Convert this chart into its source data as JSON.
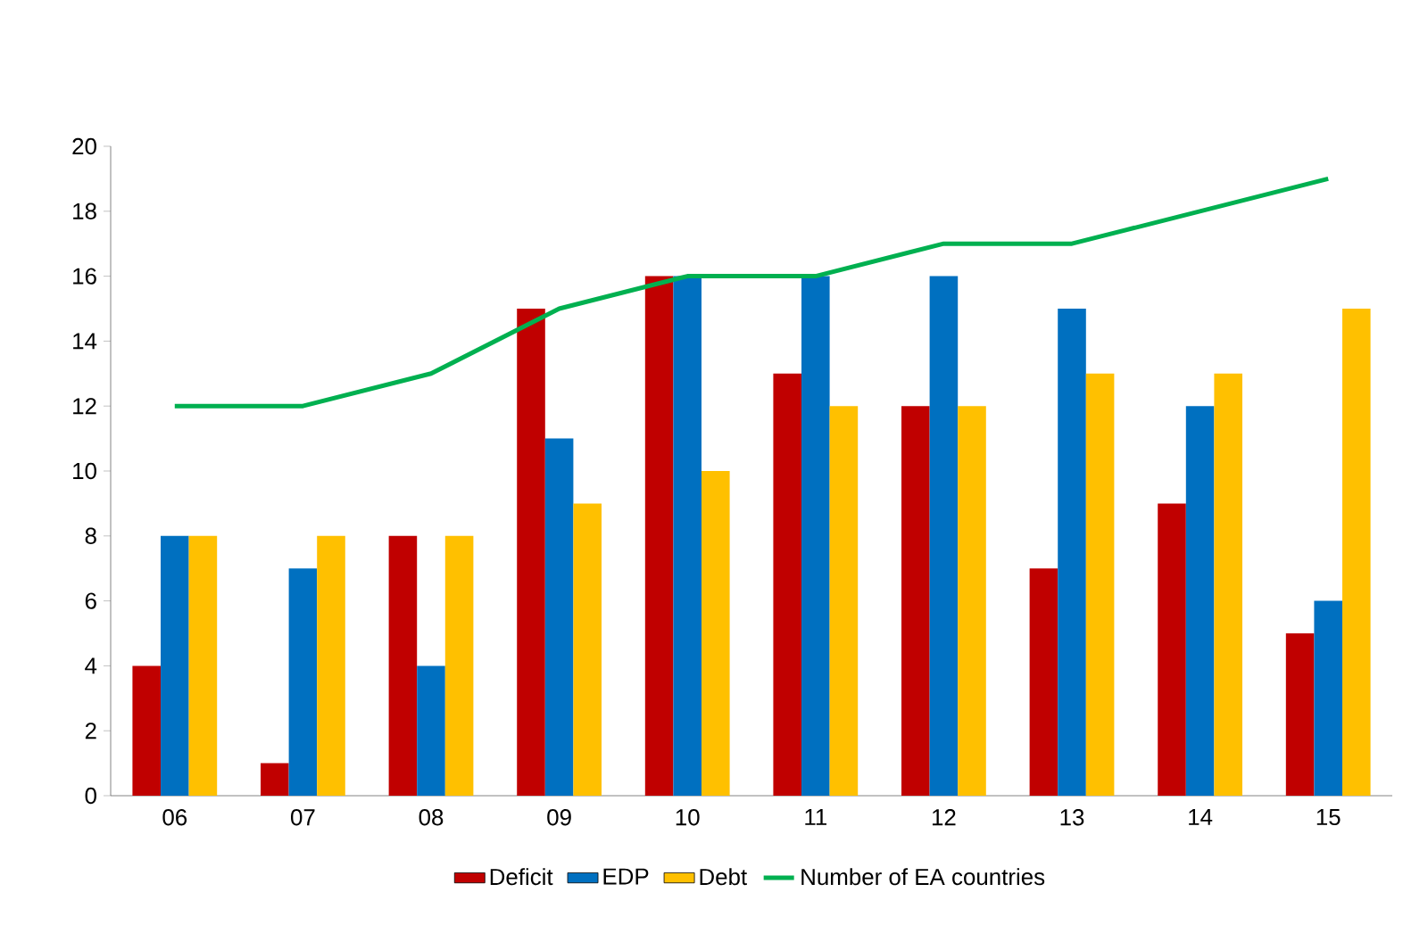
{
  "chart_data": {
    "type": "bar",
    "categories": [
      "06",
      "07",
      "08",
      "09",
      "10",
      "11",
      "12",
      "13",
      "14",
      "15"
    ],
    "series": [
      {
        "name": "Deficit",
        "color": "#c00000",
        "values": [
          4,
          1,
          8,
          15,
          16,
          13,
          12,
          7,
          9,
          5
        ]
      },
      {
        "name": "EDP",
        "color": "#0070c0",
        "values": [
          8,
          7,
          4,
          11,
          16,
          16,
          16,
          15,
          12,
          6
        ]
      },
      {
        "name": "Debt",
        "color": "#ffc000",
        "values": [
          8,
          8,
          8,
          9,
          10,
          12,
          12,
          13,
          13,
          15
        ]
      },
      {
        "name": "Number of EA countries",
        "type": "line",
        "color": "#00b050",
        "values": [
          12,
          12,
          13,
          15,
          16,
          16,
          17,
          17,
          18,
          19
        ]
      }
    ],
    "ylim": [
      0,
      20
    ],
    "yticks": [
      0,
      2,
      4,
      6,
      8,
      10,
      12,
      14,
      16,
      18,
      20
    ],
    "legend": "bottom"
  }
}
